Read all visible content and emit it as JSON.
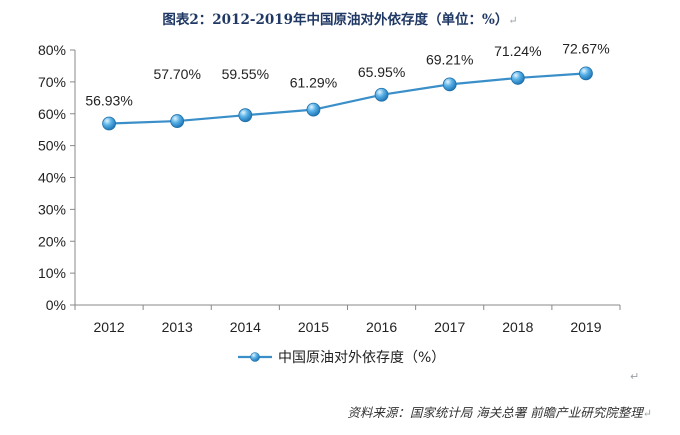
{
  "title": "图表2：2012-2019年中国原油对外依存度（单位：%）",
  "source": "资料来源：国家统计局 海关总署 前瞻产业研究院整理",
  "paragraph_mark": "↵",
  "colors": {
    "line": "#3a8fc9",
    "marker": "#47a6de",
    "axis": "#888888",
    "grid": "none"
  },
  "chart_data": {
    "type": "line",
    "categories": [
      "2012",
      "2013",
      "2014",
      "2015",
      "2016",
      "2017",
      "2018",
      "2019"
    ],
    "series": [
      {
        "name": "中国原油对外依存度（%）",
        "values": [
          56.93,
          57.7,
          59.55,
          61.29,
          65.95,
          69.21,
          71.24,
          72.67
        ]
      }
    ],
    "data_labels": [
      "56.93%",
      "57.70%",
      "59.55%",
      "61.29%",
      "65.95%",
      "69.21%",
      "71.24%",
      "72.67%"
    ],
    "y_ticks": [
      "0%",
      "10%",
      "20%",
      "30%",
      "40%",
      "50%",
      "60%",
      "70%",
      "80%"
    ],
    "ylim": [
      0,
      80
    ],
    "grid": false,
    "legend": "bottom-center"
  }
}
